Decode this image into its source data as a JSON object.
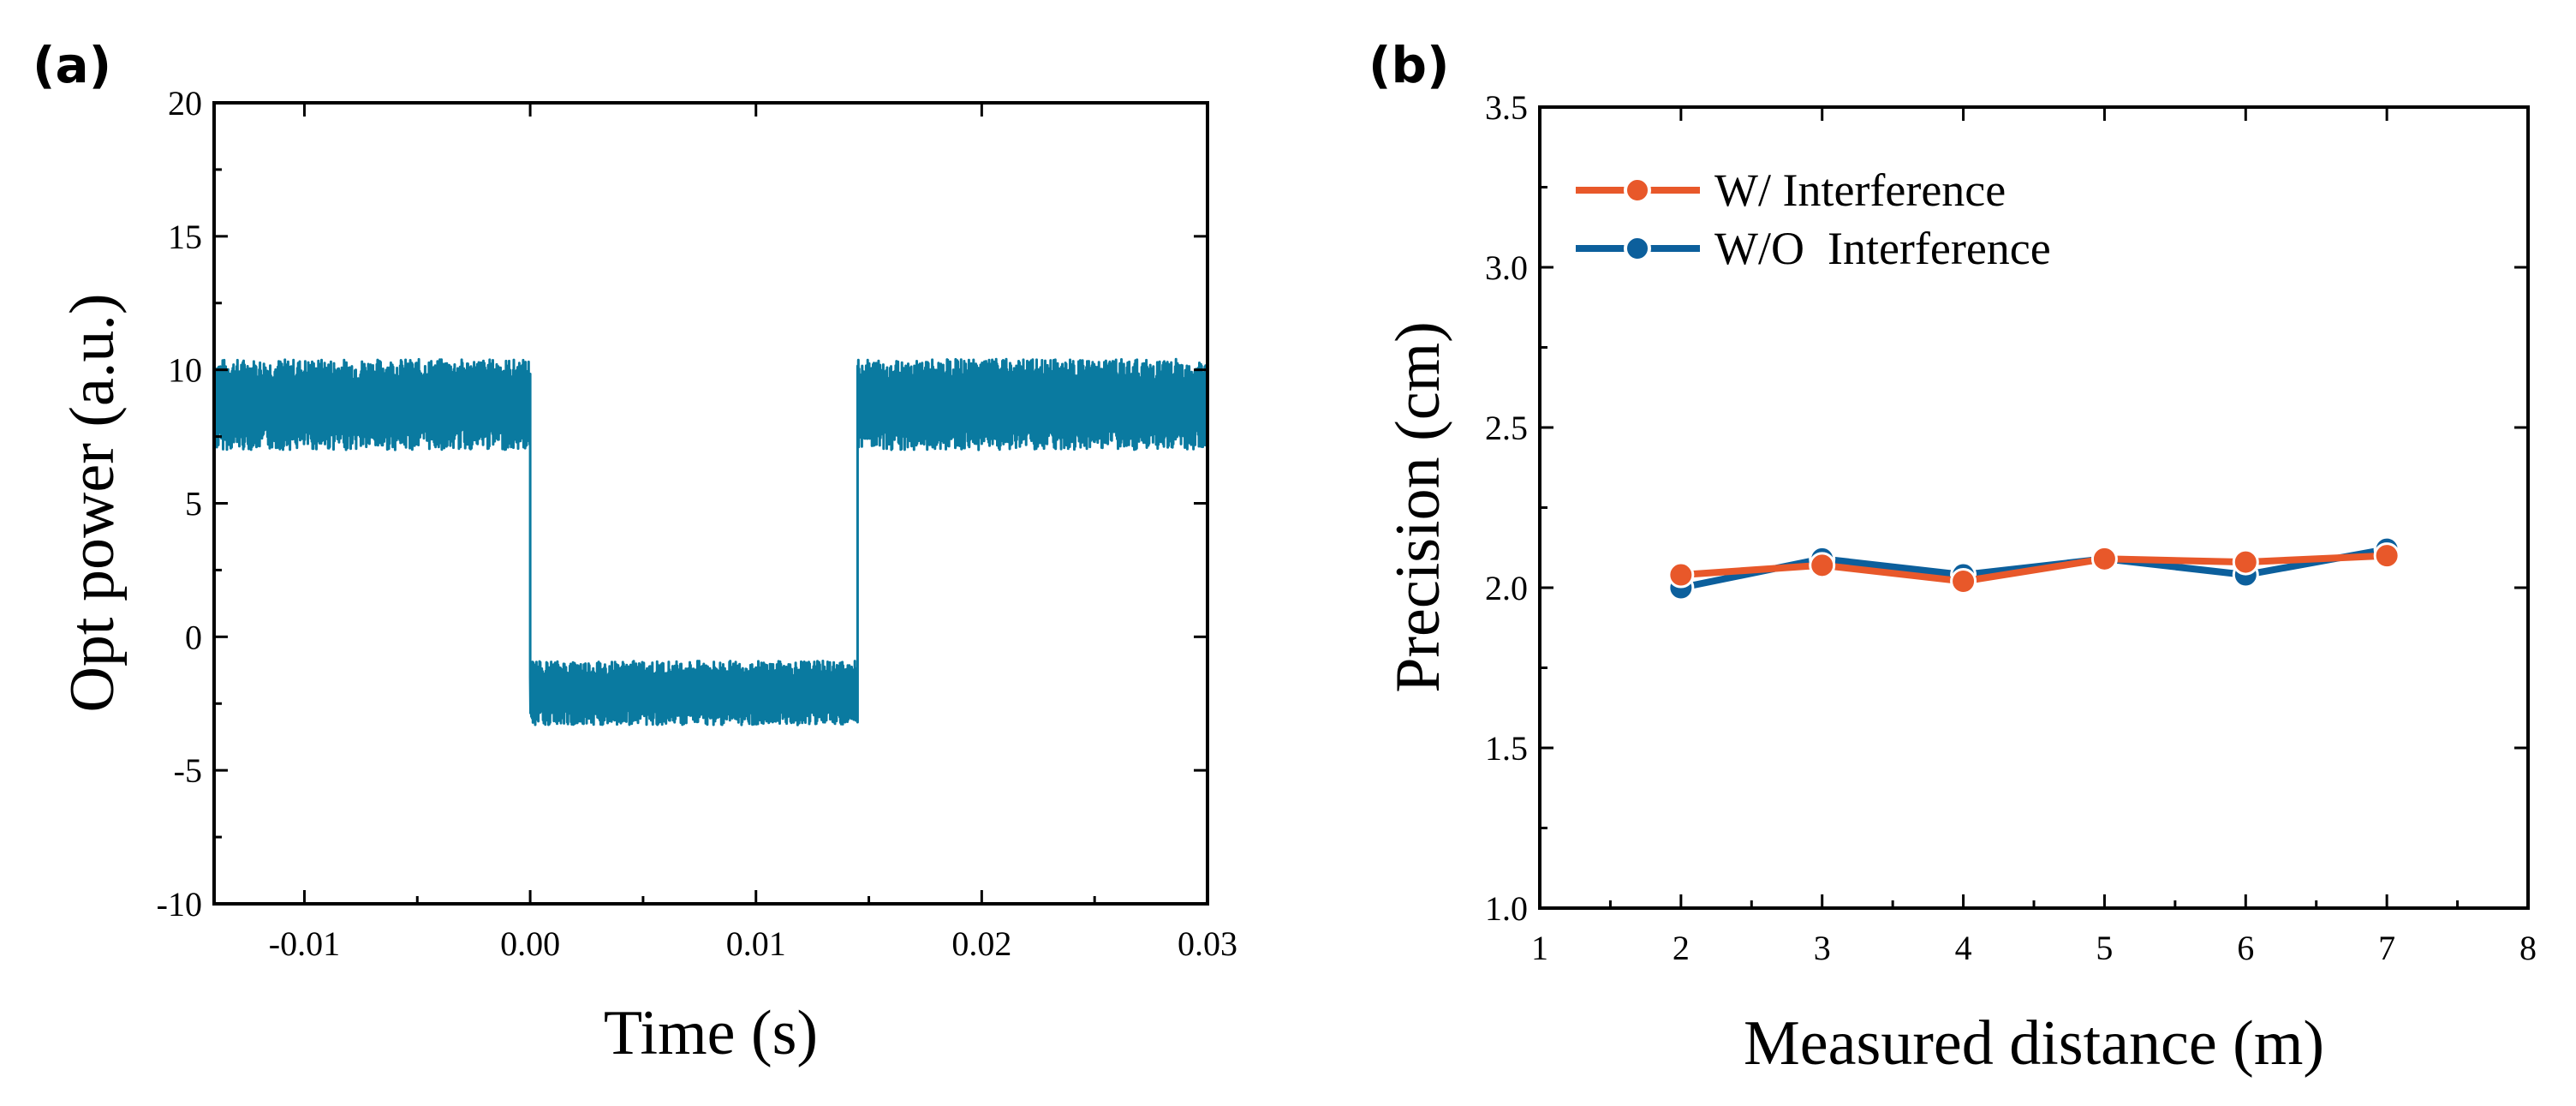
{
  "chart_data": [
    {
      "panel": "(a)",
      "type": "line",
      "xlabel": "Time (s)",
      "ylabel": "Opt power (a.u.)",
      "xlim": [
        -0.014,
        0.03
      ],
      "ylim": [
        -10,
        20
      ],
      "xticks": [
        -0.01,
        0.0,
        0.01,
        0.02,
        0.03
      ],
      "xtick_labels": [
        "-0.01",
        "0.00",
        "0.01",
        "0.02",
        "0.03"
      ],
      "yticks": [
        -10,
        -5,
        0,
        5,
        10,
        15,
        20
      ],
      "ytick_labels": [
        "-10",
        "-5",
        "0",
        "5",
        "10",
        "15",
        "20"
      ],
      "series": [
        {
          "name": "Opt power",
          "color": "#0a7aa0",
          "noise_band": [
            {
              "x0": -0.014,
              "x1": 0.0,
              "low": 7.0,
              "high": 10.4,
              "mean": 8.7
            },
            {
              "x0": 0.0,
              "x1": 0.0145,
              "low": -3.3,
              "high": -0.9,
              "mean": -2.1
            },
            {
              "x0": 0.0145,
              "x1": 0.03,
              "low": 7.0,
              "high": 10.4,
              "mean": 8.7
            }
          ]
        }
      ]
    },
    {
      "panel": "(b)",
      "type": "line",
      "xlabel": "Measured distance (m)",
      "ylabel": "Precision (cm)",
      "xlim": [
        1,
        8
      ],
      "ylim": [
        1.0,
        3.5
      ],
      "xticks": [
        1,
        2,
        3,
        4,
        5,
        6,
        7,
        8
      ],
      "xtick_labels": [
        "1",
        "2",
        "3",
        "4",
        "5",
        "6",
        "7",
        "8"
      ],
      "yticks": [
        1.0,
        1.5,
        2.0,
        2.5,
        3.0,
        3.5
      ],
      "ytick_labels": [
        "1.0",
        "1.5",
        "2.0",
        "2.5",
        "3.0",
        "3.5"
      ],
      "legend_position": "top-left",
      "x": [
        2,
        3,
        4,
        5,
        6,
        7
      ],
      "series": [
        {
          "name": "W/ Interference",
          "color": "#e8582a",
          "values": [
            2.04,
            2.07,
            2.02,
            2.09,
            2.08,
            2.1
          ]
        },
        {
          "name": "W/O  Interference",
          "color": "#0c5f9c",
          "values": [
            2.0,
            2.09,
            2.04,
            2.09,
            2.04,
            2.12
          ]
        }
      ]
    }
  ]
}
